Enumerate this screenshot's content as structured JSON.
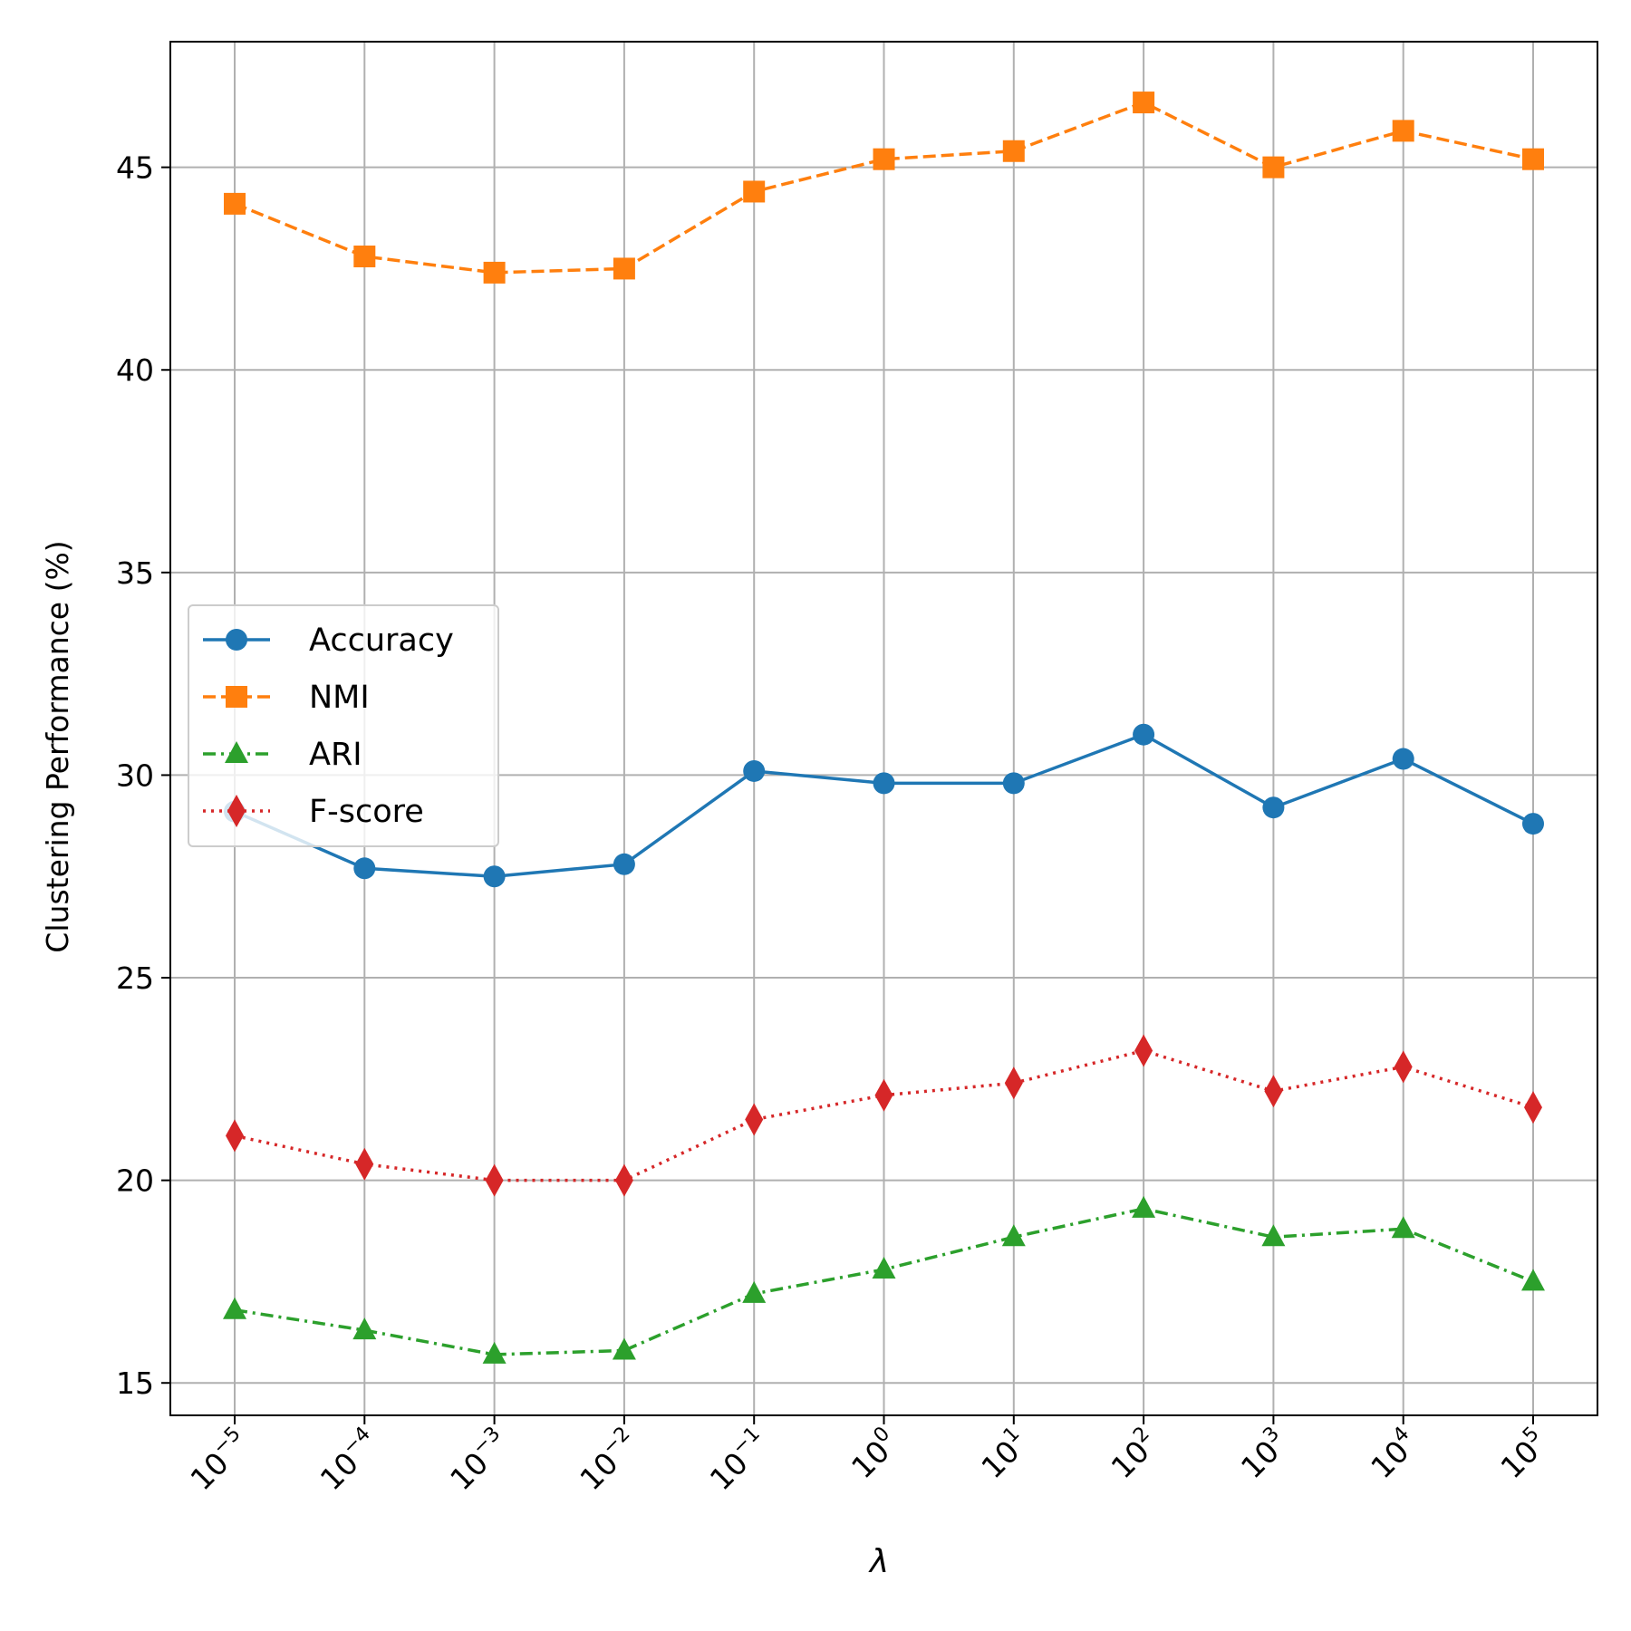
{
  "chart_data": {
    "type": "line",
    "xlabel": "λ",
    "ylabel": "Clustering Performance (%)",
    "ylim": [
      14.2,
      48.1
    ],
    "yticks": [
      15,
      20,
      25,
      30,
      35,
      40,
      45
    ],
    "grid": true,
    "legend_position": "center-left",
    "categories": [
      {
        "base": "10",
        "exp": "−5"
      },
      {
        "base": "10",
        "exp": "−4"
      },
      {
        "base": "10",
        "exp": "−3"
      },
      {
        "base": "10",
        "exp": "−2"
      },
      {
        "base": "10",
        "exp": "−1"
      },
      {
        "base": "10",
        "exp": "0"
      },
      {
        "base": "10",
        "exp": "1"
      },
      {
        "base": "10",
        "exp": "2"
      },
      {
        "base": "10",
        "exp": "3"
      },
      {
        "base": "10",
        "exp": "4"
      },
      {
        "base": "10",
        "exp": "5"
      }
    ],
    "series": [
      {
        "name": "Accuracy",
        "color": "#1f77b4",
        "marker": "circle",
        "dash": "solid",
        "values": [
          29.1,
          27.7,
          27.5,
          27.8,
          30.1,
          29.8,
          29.8,
          31.0,
          29.2,
          30.4,
          28.8
        ]
      },
      {
        "name": "NMI",
        "color": "#ff7f0e",
        "marker": "square",
        "dash": "dashed",
        "values": [
          44.1,
          42.8,
          42.4,
          42.5,
          44.4,
          45.2,
          45.4,
          46.6,
          45.0,
          45.9,
          45.2
        ]
      },
      {
        "name": "ARI",
        "color": "#2ca02c",
        "marker": "triangle",
        "dash": "dashdot",
        "values": [
          16.8,
          16.3,
          15.7,
          15.8,
          17.2,
          17.8,
          18.6,
          19.3,
          18.6,
          18.8,
          17.5
        ]
      },
      {
        "name": "F-score",
        "color": "#d62728",
        "marker": "diamond",
        "dash": "dotted",
        "values": [
          21.1,
          20.4,
          20.0,
          20.0,
          21.5,
          22.1,
          22.4,
          23.2,
          22.2,
          22.8,
          21.8
        ]
      }
    ]
  }
}
